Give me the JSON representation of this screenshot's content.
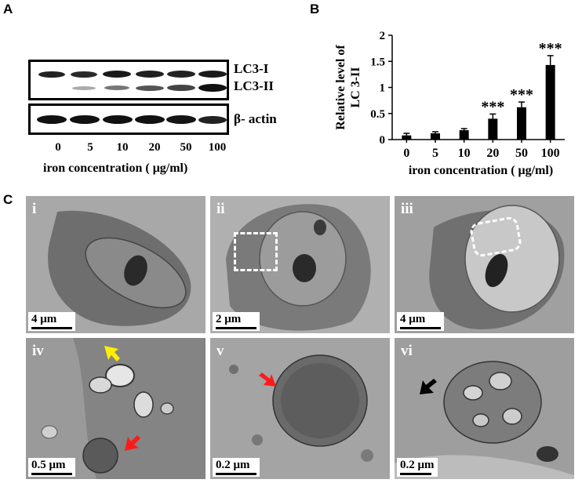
{
  "panel_labels": {
    "a": "A",
    "b": "B",
    "c": "C"
  },
  "blot": {
    "bands": {
      "lc3i": "LC3-I",
      "lc3ii": "LC3-II",
      "actin": "β- actin"
    },
    "lanes": [
      "0",
      "5",
      "10",
      "20",
      "50",
      "100"
    ],
    "xlabel": "iron concentration ( μg/ml)"
  },
  "chart_data": {
    "type": "bar",
    "categories": [
      "0",
      "5",
      "10",
      "20",
      "50",
      "100"
    ],
    "values": [
      0.08,
      0.12,
      0.18,
      0.4,
      0.62,
      1.43
    ],
    "errors": [
      0.04,
      0.03,
      0.03,
      0.09,
      0.1,
      0.18
    ],
    "significance": [
      "",
      "",
      "",
      "***",
      "***",
      "***"
    ],
    "title": "",
    "xlabel": "iron concentration ( μg/ml)",
    "ylabel": "Relative level of LC 3-II",
    "ylim": [
      0,
      2
    ],
    "yticks": [
      "0",
      "0.5",
      "1",
      "1.5",
      "2"
    ],
    "bar_color": "#000000"
  },
  "micrographs": [
    {
      "label": "i",
      "scale": "4 μm"
    },
    {
      "label": "ii",
      "scale": "2 μm"
    },
    {
      "label": "iii",
      "scale": "4 μm"
    },
    {
      "label": "iv",
      "scale": "0.5 μm"
    },
    {
      "label": "v",
      "scale": "0.2 μm"
    },
    {
      "label": "vi",
      "scale": "0.2 μm"
    }
  ],
  "arrow_colors": {
    "yellow": "#ffee00",
    "red": "#ff1a1a",
    "black": "#000000"
  }
}
